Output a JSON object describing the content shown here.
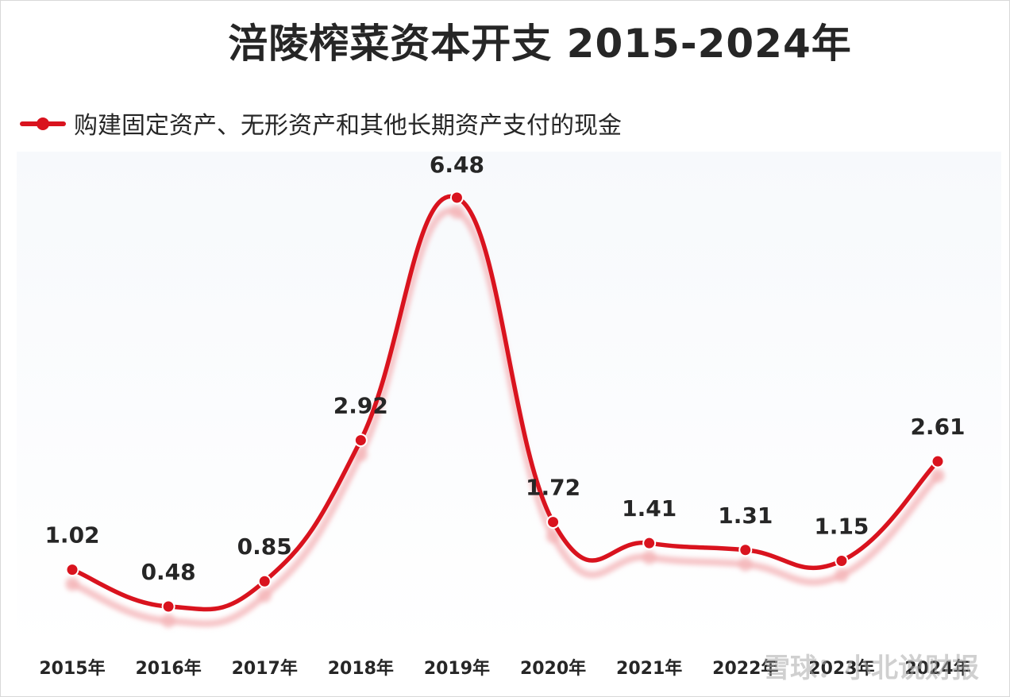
{
  "chart_data": {
    "type": "line",
    "title": "涪陵榨菜资本开支 2015-2024年",
    "categories": [
      "2015年",
      "2016年",
      "2017年",
      "2018年",
      "2019年",
      "2020年",
      "2021年",
      "2022年",
      "2023年",
      "2024年"
    ],
    "series": [
      {
        "name": "购建固定资产、无形资产和其他长期资产支付的现金",
        "values": [
          1.02,
          0.48,
          0.85,
          2.92,
          6.48,
          1.72,
          1.41,
          1.31,
          1.15,
          2.61
        ],
        "labels": [
          "1.02",
          "0.48",
          "0.85",
          "2.92",
          "6.48",
          "1.72",
          "1.41",
          "1.31",
          "1.15",
          "2.61"
        ]
      }
    ],
    "xlabel": "",
    "ylabel": "",
    "ylim": [
      0.2,
      6.8
    ],
    "grid": false,
    "legend_position": "top-left",
    "colors": {
      "line": "#d9131e",
      "shadow": "#f4b3b7",
      "text": "#262626"
    }
  },
  "watermark": "雪球：小北说财报"
}
